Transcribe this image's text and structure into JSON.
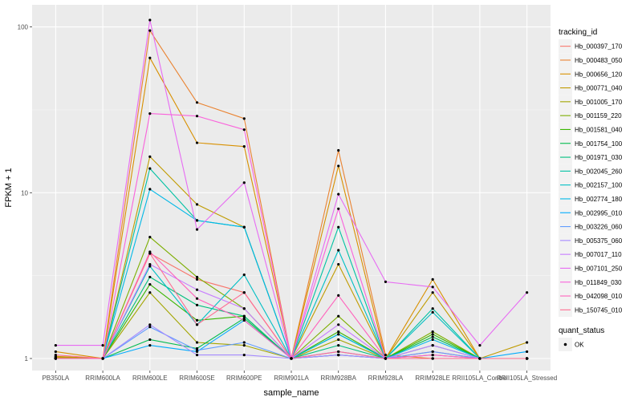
{
  "chart_data": {
    "type": "line",
    "xlabel": "sample_name",
    "ylabel": "FPKM + 1",
    "yscale": "log10",
    "ylim": [
      1,
      110
    ],
    "y_ticks": [
      1,
      10,
      100
    ],
    "y_tick_labels": [
      "1",
      "10",
      "100"
    ],
    "grid": true,
    "legend_position": "right",
    "categories": [
      "PB350LA",
      "RRIM600LA",
      "RRIM600LE",
      "RRIM600SE",
      "RRIM600PE",
      "RRIM901LA",
      "RRIM928BA",
      "RRIM928LA",
      "RRIM928LE",
      "RRII105LA_Control",
      "RRII105LA_Stressed"
    ],
    "legend": {
      "title": "tracking_id"
    },
    "shape_legend": {
      "title": "quant_status",
      "items": [
        "OK"
      ]
    },
    "series": [
      {
        "name": "Hb_000397_170",
        "color": "#F8766D",
        "values": [
          1.0,
          1.0,
          4.3,
          3.0,
          2.5,
          1.0,
          1.05,
          1.0,
          1.1,
          1.0,
          1.0
        ]
      },
      {
        "name": "Hb_000483_050",
        "color": "#EA8331",
        "values": [
          1.02,
          1.0,
          95.0,
          35.0,
          28.0,
          1.0,
          18.0,
          1.05,
          1.0,
          1.0,
          1.0
        ]
      },
      {
        "name": "Hb_000656_120",
        "color": "#D89000",
        "values": [
          1.1,
          1.0,
          65.0,
          20.0,
          19.0,
          1.0,
          14.5,
          1.0,
          3.0,
          1.0,
          1.0
        ]
      },
      {
        "name": "Hb_000771_040",
        "color": "#C09B00",
        "values": [
          1.03,
          1.0,
          16.5,
          8.5,
          6.2,
          1.0,
          3.7,
          1.0,
          2.5,
          1.0,
          1.25
        ]
      },
      {
        "name": "Hb_001005_170",
        "color": "#A3A500",
        "values": [
          1.01,
          1.0,
          2.5,
          1.25,
          1.2,
          1.0,
          1.3,
          1.0,
          1.05,
          1.0,
          1.0
        ]
      },
      {
        "name": "Hb_001159_220",
        "color": "#7CAE00",
        "values": [
          1.0,
          1.0,
          5.4,
          3.1,
          2.0,
          1.0,
          1.8,
          1.0,
          1.45,
          1.0,
          1.0
        ]
      },
      {
        "name": "Hb_001581_040",
        "color": "#39B600",
        "values": [
          1.0,
          1.0,
          2.8,
          1.7,
          1.8,
          1.0,
          1.45,
          1.0,
          1.4,
          1.0,
          1.0
        ]
      },
      {
        "name": "Hb_001754_100",
        "color": "#00BB4E",
        "values": [
          1.0,
          1.0,
          1.3,
          1.15,
          1.75,
          1.0,
          1.4,
          1.0,
          1.35,
          1.0,
          1.0
        ]
      },
      {
        "name": "Hb_001971_030",
        "color": "#00BF7D",
        "values": [
          1.0,
          1.0,
          3.1,
          2.1,
          1.8,
          1.0,
          1.2,
          1.0,
          1.2,
          1.0,
          1.0
        ]
      },
      {
        "name": "Hb_002045_260",
        "color": "#00C1A3",
        "values": [
          1.0,
          1.0,
          14.0,
          6.8,
          6.2,
          1.0,
          6.2,
          1.0,
          2.0,
          1.0,
          1.0
        ]
      },
      {
        "name": "Hb_002157_100",
        "color": "#00BFC4",
        "values": [
          1.0,
          1.0,
          3.6,
          1.6,
          3.2,
          1.0,
          4.5,
          1.0,
          1.9,
          1.0,
          1.0
        ]
      },
      {
        "name": "Hb_002774_180",
        "color": "#00B8E7",
        "values": [
          1.0,
          1.0,
          10.5,
          6.8,
          6.2,
          1.0,
          1.4,
          1.0,
          1.3,
          1.0,
          1.0
        ]
      },
      {
        "name": "Hb_002995_010",
        "color": "#00ABFD",
        "values": [
          1.0,
          1.0,
          1.2,
          1.1,
          1.7,
          1.0,
          1.05,
          1.0,
          1.0,
          1.0,
          1.1
        ]
      },
      {
        "name": "Hb_003226_060",
        "color": "#619CFF",
        "values": [
          1.0,
          1.0,
          1.55,
          1.12,
          1.25,
          1.0,
          1.1,
          1.0,
          1.1,
          1.0,
          1.0
        ]
      },
      {
        "name": "Hb_005375_060",
        "color": "#A58AFF",
        "values": [
          1.0,
          1.0,
          1.6,
          1.05,
          1.05,
          1.0,
          1.05,
          1.0,
          1.0,
          1.0,
          1.0
        ]
      },
      {
        "name": "Hb_007017_110",
        "color": "#C77CFF",
        "values": [
          1.0,
          1.0,
          3.7,
          2.6,
          2.0,
          1.0,
          1.6,
          1.0,
          1.2,
          1.0,
          1.0
        ]
      },
      {
        "name": "Hb_007101_250",
        "color": "#E76BF3",
        "values": [
          1.2,
          1.2,
          110.0,
          6.0,
          11.5,
          1.0,
          9.8,
          2.9,
          2.7,
          1.2,
          2.5
        ]
      },
      {
        "name": "Hb_011849_030",
        "color": "#FA62DB",
        "values": [
          1.0,
          1.0,
          30.0,
          29.0,
          24.0,
          1.0,
          8.0,
          1.0,
          1.05,
          1.0,
          1.0
        ]
      },
      {
        "name": "Hb_042098_010",
        "color": "#FF62BC",
        "values": [
          1.0,
          1.0,
          4.4,
          2.3,
          1.7,
          1.0,
          2.4,
          1.0,
          1.0,
          1.0,
          1.0
        ]
      },
      {
        "name": "Hb_150745_010",
        "color": "#FF6C91",
        "values": [
          1.05,
          1.0,
          4.3,
          1.6,
          2.5,
          1.0,
          1.1,
          1.0,
          1.0,
          1.0,
          1.0
        ]
      }
    ]
  }
}
